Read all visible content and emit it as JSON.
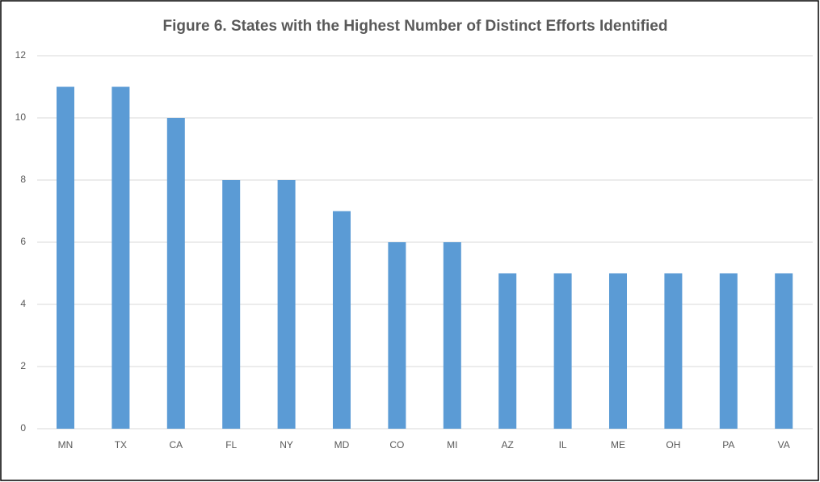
{
  "chart_data": {
    "type": "bar",
    "title": "Figure 6.  States with the Highest Number of Distinct Efforts Identified",
    "categories": [
      "MN",
      "TX",
      "CA",
      "FL",
      "NY",
      "MD",
      "CO",
      "MI",
      "AZ",
      "IL",
      "ME",
      "OH",
      "PA",
      "VA"
    ],
    "values": [
      11,
      11,
      10,
      8,
      8,
      7,
      6,
      6,
      5,
      5,
      5,
      5,
      5,
      5
    ],
    "color": "#5b9bd5",
    "ylim": [
      0,
      12
    ],
    "yticks": [
      0,
      2,
      4,
      6,
      8,
      10,
      12
    ],
    "grid": true
  }
}
